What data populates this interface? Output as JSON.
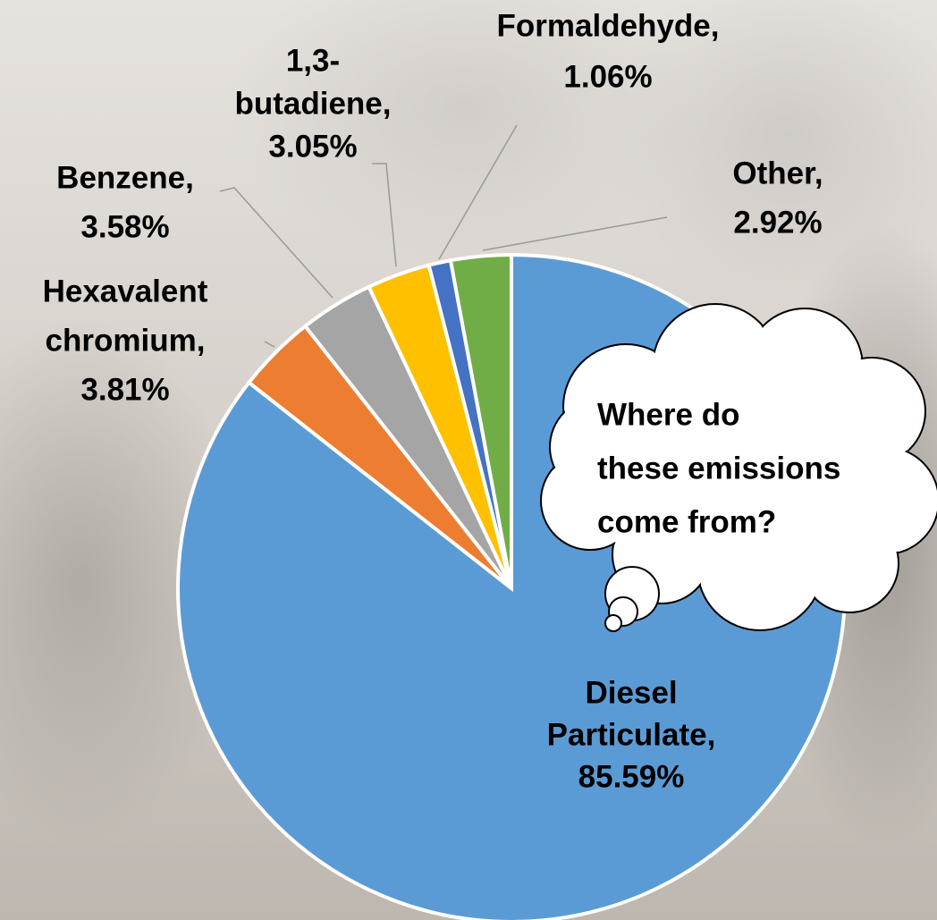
{
  "chart_data": {
    "type": "pie",
    "values": [
      85.59,
      3.81,
      3.58,
      3.05,
      1.06,
      2.92
    ],
    "value_labels": [
      [
        "Diesel",
        "Particulate,",
        "85.59%"
      ],
      [
        "Hexavalent",
        "chromium,",
        "3.81%"
      ],
      [
        "Benzene,",
        "3.58%"
      ],
      [
        "1,3-",
        "butadiene,",
        "3.05%"
      ],
      [
        "Formaldehyde,",
        "1.06%"
      ],
      [
        "Other,",
        "2.92%"
      ]
    ],
    "colors": [
      "#5b9bd5",
      "#ed7d31",
      "#a5a5a5",
      "#ffc000",
      "#4472c4",
      "#70ad47"
    ],
    "annotation": [
      "Where do",
      "these emissions",
      "come from?"
    ]
  }
}
